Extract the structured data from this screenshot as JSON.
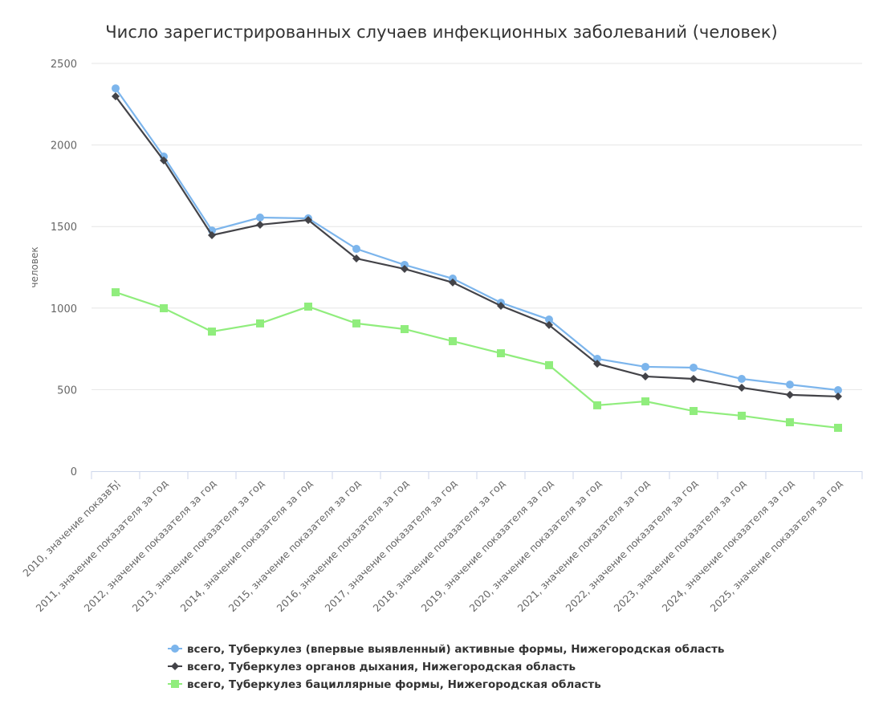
{
  "chart_data": {
    "type": "line",
    "title": "Число зарегистрированных случаев инфекционных заболеваний (человек)",
    "xlabel": "",
    "ylabel": "человек",
    "ylim": [
      0,
      2500
    ],
    "yticks": [
      0,
      500,
      1000,
      1500,
      2000,
      2500
    ],
    "grid": true,
    "legend_position": "bottom",
    "categories": [
      "2010, значение показвЂ¦",
      "2011, значение показателя за год",
      "2012, значение показателя за год",
      "2013, значение показателя за год",
      "2014, значение показателя за год",
      "2015, значение показателя за год",
      "2016, значение показателя за год",
      "2017, значение показателя за год",
      "2018, значение показателя за год",
      "2019, значение показателя за год",
      "2020, значение показателя за год",
      "2021, значение показателя за год",
      "2022, значение показателя за год",
      "2023, значение показателя за год",
      "2024, значение показателя за год",
      "2025, значение показателя за год"
    ],
    "series": [
      {
        "name": "всего, Туберкулез (впервые выявленный) активные формы, Нижегородская область",
        "color": "#7cb5ec",
        "marker": "circle",
        "values": [
          2347,
          1929,
          1476,
          1555,
          1550,
          1363,
          1265,
          1181,
          1033,
          930,
          689,
          640,
          635,
          566,
          531,
          497
        ]
      },
      {
        "name": "всего, Туберкулез органов дыхания, Нижегородская область",
        "color": "#434348",
        "marker": "diamond",
        "values": [
          2298,
          1905,
          1447,
          1511,
          1540,
          1304,
          1240,
          1157,
          1014,
          896,
          659,
          581,
          566,
          512,
          468,
          458
        ]
      },
      {
        "name": "всего, Туберкулез бациллярные формы, Нижегородская область",
        "color": "#90ed7d",
        "marker": "square",
        "values": [
          1097,
          999,
          856,
          906,
          1009,
          906,
          871,
          797,
          723,
          650,
          404,
          428,
          369,
          340,
          300,
          266
        ]
      }
    ]
  }
}
